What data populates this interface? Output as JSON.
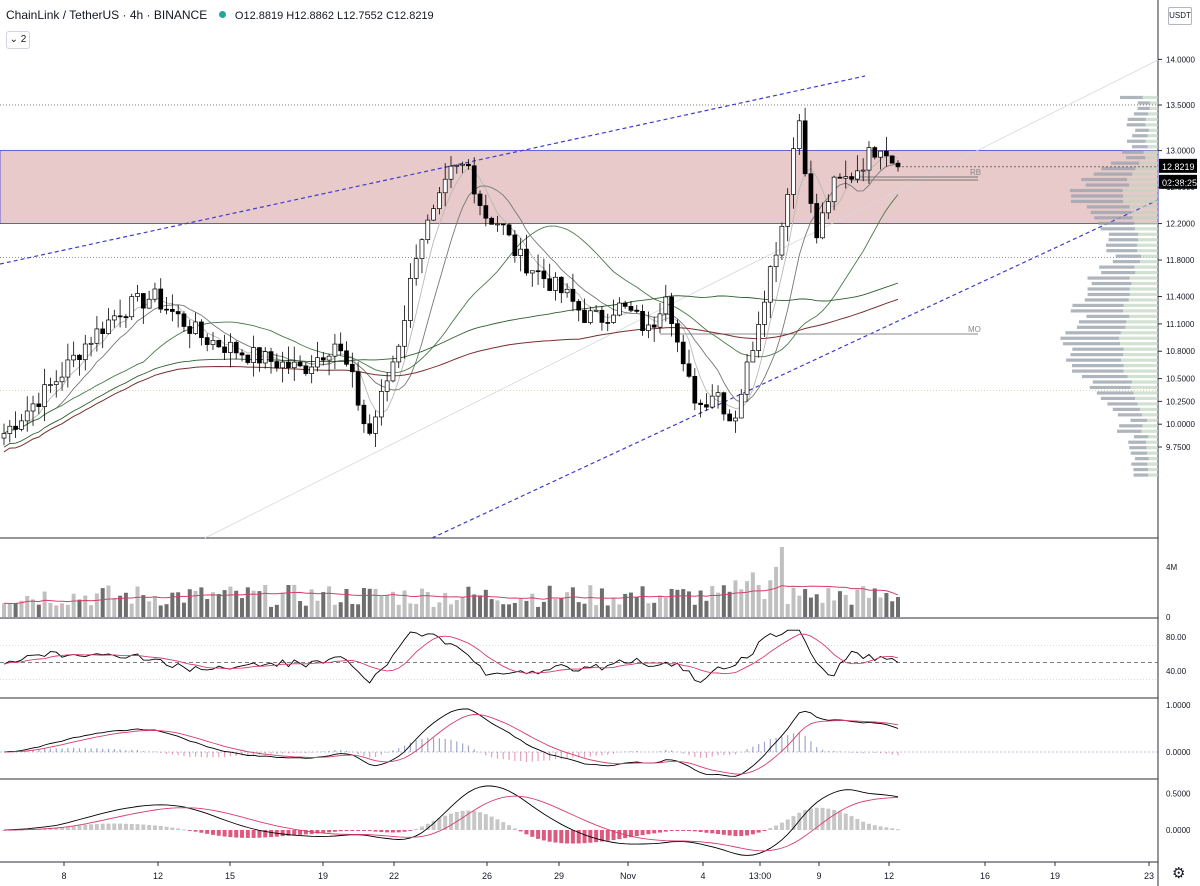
{
  "header": {
    "symbol": "ChainLink / TetherUS · 4h · BINANCE",
    "ohlc": "O12.8819 H12.8862 L12.7552 C12.8219",
    "legend_count": "⌄ 2",
    "unit_label": "USDT"
  },
  "colors": {
    "up": "#ffffff",
    "down": "#000000",
    "zone": "#e0b4b4",
    "channel": "#3d3dcc",
    "ma_light": "#b8b8b8",
    "ma_gray": "#777777",
    "ma_green": "#2e5e2e",
    "ma_maroon": "#7a2f2f",
    "signal": "#d63d6a"
  },
  "chart_data": [
    {
      "type": "line",
      "kind": "candlestick",
      "title": "ChainLink / TetherUS · 4h · BINANCE",
      "y_ticks": [
        "14.0000",
        "13.5000",
        "13.0000",
        "12.6000",
        "12.2000",
        "11.8000",
        "11.4000",
        "11.1000",
        "10.8000",
        "10.5000",
        "10.2500",
        "10.0000",
        "9.7500"
      ],
      "x_ticks": [
        "8",
        "12",
        "15",
        "19",
        "22",
        "26",
        "29",
        "Nov",
        "4",
        "13:00",
        "9",
        "12",
        "16",
        "19",
        "23"
      ],
      "last_price": "12.8219",
      "countdown": "02:38:25",
      "resistance_zone": [
        12.2,
        13.0
      ],
      "horizontal_levels": [
        13.5,
        11.83,
        10.37
      ],
      "labels": {
        "upper_ray": "RB",
        "lower_ray": "MO"
      },
      "price_path": [
        [
          0,
          9.9
        ],
        [
          3,
          10.45
        ],
        [
          5,
          10.9
        ],
        [
          7,
          11.25
        ],
        [
          9,
          11.4
        ],
        [
          12,
          10.95
        ],
        [
          15,
          10.75
        ],
        [
          18,
          10.6
        ],
        [
          20,
          10.9
        ],
        [
          21,
          10.5
        ],
        [
          22,
          9.85
        ],
        [
          23,
          10.4
        ],
        [
          24,
          11.0
        ],
        [
          25,
          12.0
        ],
        [
          26,
          12.3
        ],
        [
          27,
          12.75
        ],
        [
          28,
          12.85
        ],
        [
          29,
          12.3
        ],
        [
          30,
          12.2
        ],
        [
          31,
          11.85
        ],
        [
          32,
          11.7
        ],
        [
          33,
          11.55
        ],
        [
          34,
          11.4
        ],
        [
          35,
          11.2
        ],
        [
          36,
          11.15
        ],
        [
          37,
          11.3
        ],
        [
          38,
          11.2
        ],
        [
          39,
          11.0
        ],
        [
          40,
          11.5
        ],
        [
          41,
          10.6
        ],
        [
          42,
          10.2
        ],
        [
          43,
          10.4
        ],
        [
          44,
          10.0
        ],
        [
          45,
          10.7
        ],
        [
          46,
          11.5
        ],
        [
          47,
          12.2
        ],
        [
          48,
          13.4
        ],
        [
          49,
          12.0
        ],
        [
          50,
          12.6
        ],
        [
          51,
          12.7
        ],
        [
          52,
          12.9
        ],
        [
          53,
          13.1
        ],
        [
          54,
          12.8
        ]
      ],
      "volume_axis": [
        "4M",
        "0"
      ],
      "rsi_axis": [
        "80.00",
        "40.00"
      ],
      "macd_axis": [
        "1.0000",
        "0.0000"
      ],
      "osc_axis": [
        "0.5000",
        "0.0000"
      ]
    }
  ]
}
